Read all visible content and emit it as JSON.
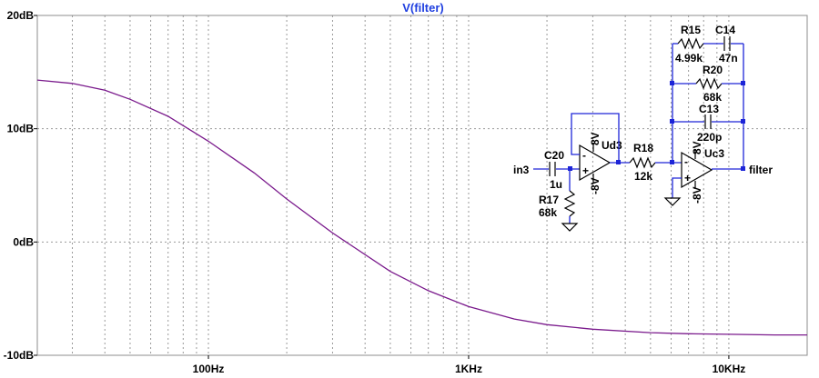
{
  "chart_data": {
    "type": "line",
    "title": "V(filter)",
    "xlabel": "",
    "ylabel": "",
    "x_scale": "log",
    "xlim": [
      22,
      20000
    ],
    "ylim": [
      -10,
      20
    ],
    "grid": true,
    "x_ticks": [
      {
        "value": 100,
        "label": "100Hz"
      },
      {
        "value": 1000,
        "label": "1KHz"
      },
      {
        "value": 10000,
        "label": "10KHz"
      }
    ],
    "y_ticks": [
      {
        "value": 20,
        "label": "20dB"
      },
      {
        "value": 10,
        "label": "10dB"
      },
      {
        "value": 0,
        "label": "0dB"
      },
      {
        "value": -10,
        "label": "-10dB"
      }
    ],
    "series": [
      {
        "name": "V(filter)",
        "color": "#7a1a8c",
        "x": [
          22,
          30,
          40,
          50,
          70,
          100,
          150,
          200,
          300,
          500,
          700,
          1000,
          1500,
          2000,
          3000,
          5000,
          7000,
          10000,
          15000,
          20000
        ],
        "y": [
          14.3,
          14.0,
          13.4,
          12.6,
          11.1,
          8.9,
          6.1,
          3.8,
          0.8,
          -2.6,
          -4.3,
          -5.7,
          -6.8,
          -7.3,
          -7.7,
          -8.0,
          -8.1,
          -8.15,
          -8.2,
          -8.2
        ]
      }
    ]
  },
  "schematic": {
    "labels": {
      "r15": "R15",
      "r15_val": "4.99k",
      "c14": "C14",
      "c14_val": "47n",
      "r20": "R20",
      "r20_val": "68k",
      "c13": "C13",
      "c13_val": "220p",
      "c20": "C20",
      "c20_val": "1u",
      "r17": "R17",
      "r17_val": "68k",
      "r18": "R18",
      "r18_val": "12k",
      "ud3": "Ud3",
      "uc3": "Uc3",
      "in3": "in3",
      "filter": "filter",
      "pos_rail": "8V",
      "neg_rail": "-8V"
    }
  }
}
